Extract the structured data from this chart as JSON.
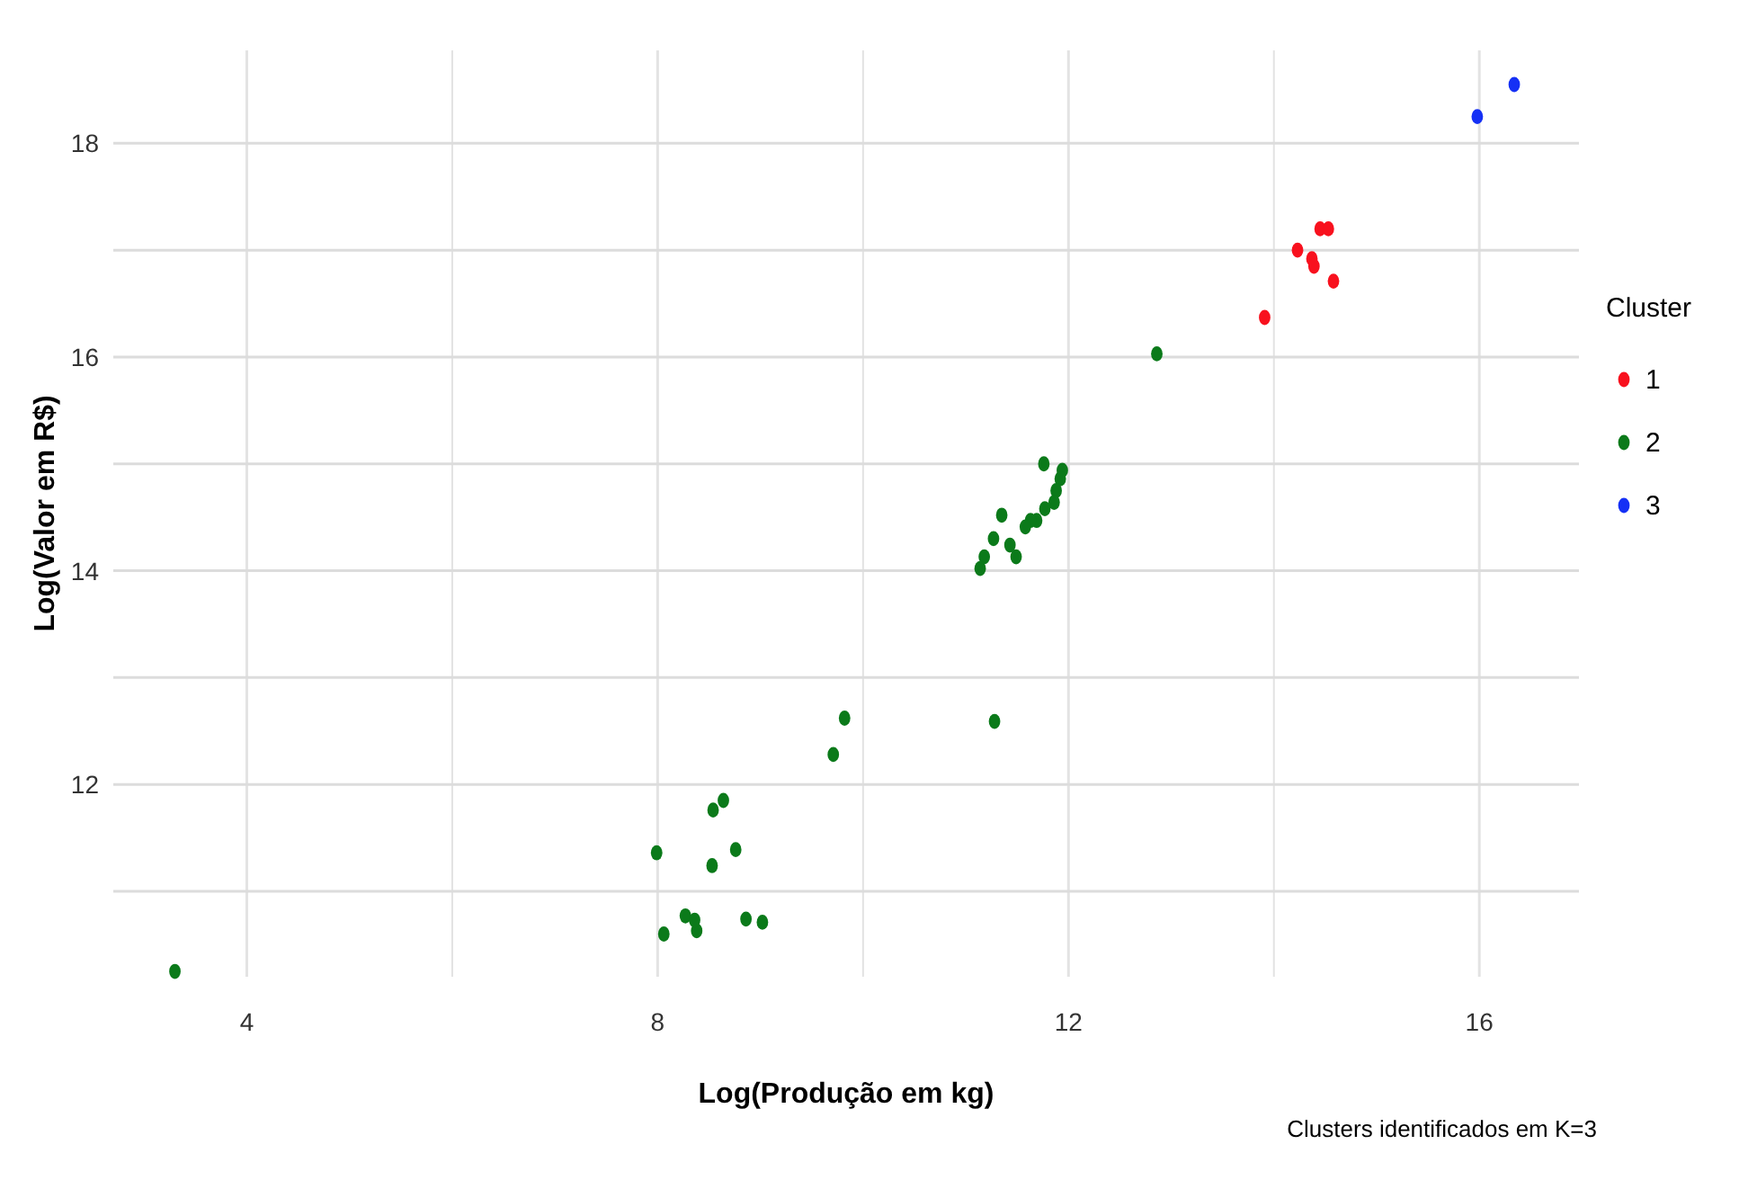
{
  "chart_data": {
    "type": "scatter",
    "xlabel": "Log(Produção em kg)",
    "ylabel": "Log(Valor em R$)",
    "legend_title": "Cluster",
    "annotations": [
      "Clusters identificados em K=3"
    ],
    "xlim": [
      2.7,
      16.97
    ],
    "ylim": [
      10.2,
      18.87
    ],
    "xticks": [
      4,
      {
        "value": 6,
        "label": null
      },
      8,
      {
        "value": 10,
        "label": null
      },
      12,
      {
        "value": 14,
        "label": null
      },
      16
    ],
    "yticks": [
      {
        "value": 11,
        "label": null
      },
      12,
      {
        "value": 13,
        "label": null
      },
      14,
      {
        "value": 15,
        "label": null
      },
      16,
      {
        "value": 17,
        "label": null
      },
      18
    ],
    "grid": true,
    "legend": "right",
    "marker": "circle",
    "series": [
      {
        "name": "1",
        "color": "#f8111e",
        "x": [
          13.91,
          14.23,
          14.37,
          14.39,
          14.45,
          14.53,
          14.58
        ],
        "values": [
          16.37,
          17.0,
          16.92,
          16.85,
          17.2,
          17.2,
          16.71
        ]
      },
      {
        "name": "2",
        "color": "#0b7a1a",
        "x": [
          12.86,
          11.76,
          11.94,
          11.92,
          11.88,
          11.86,
          11.77,
          11.69,
          11.63,
          11.58,
          11.49,
          11.43,
          11.35,
          11.27,
          11.18,
          11.14,
          9.82,
          9.71,
          8.54,
          8.64,
          7.99,
          8.53,
          8.76,
          8.27,
          8.38,
          8.36,
          8.06,
          8.86,
          9.02,
          3.3,
          11.28
        ],
        "values": [
          16.03,
          15.0,
          14.94,
          14.86,
          14.75,
          14.64,
          14.58,
          14.47,
          14.47,
          14.41,
          14.13,
          14.24,
          14.52,
          14.3,
          14.13,
          14.02,
          12.62,
          12.28,
          11.76,
          11.85,
          11.36,
          11.24,
          11.39,
          10.77,
          10.63,
          10.73,
          10.6,
          10.74,
          10.71,
          10.25,
          12.59
        ]
      },
      {
        "name": "3",
        "color": "#1530f5",
        "x": [
          15.98,
          16.34
        ],
        "values": [
          18.25,
          18.55
        ]
      }
    ]
  }
}
